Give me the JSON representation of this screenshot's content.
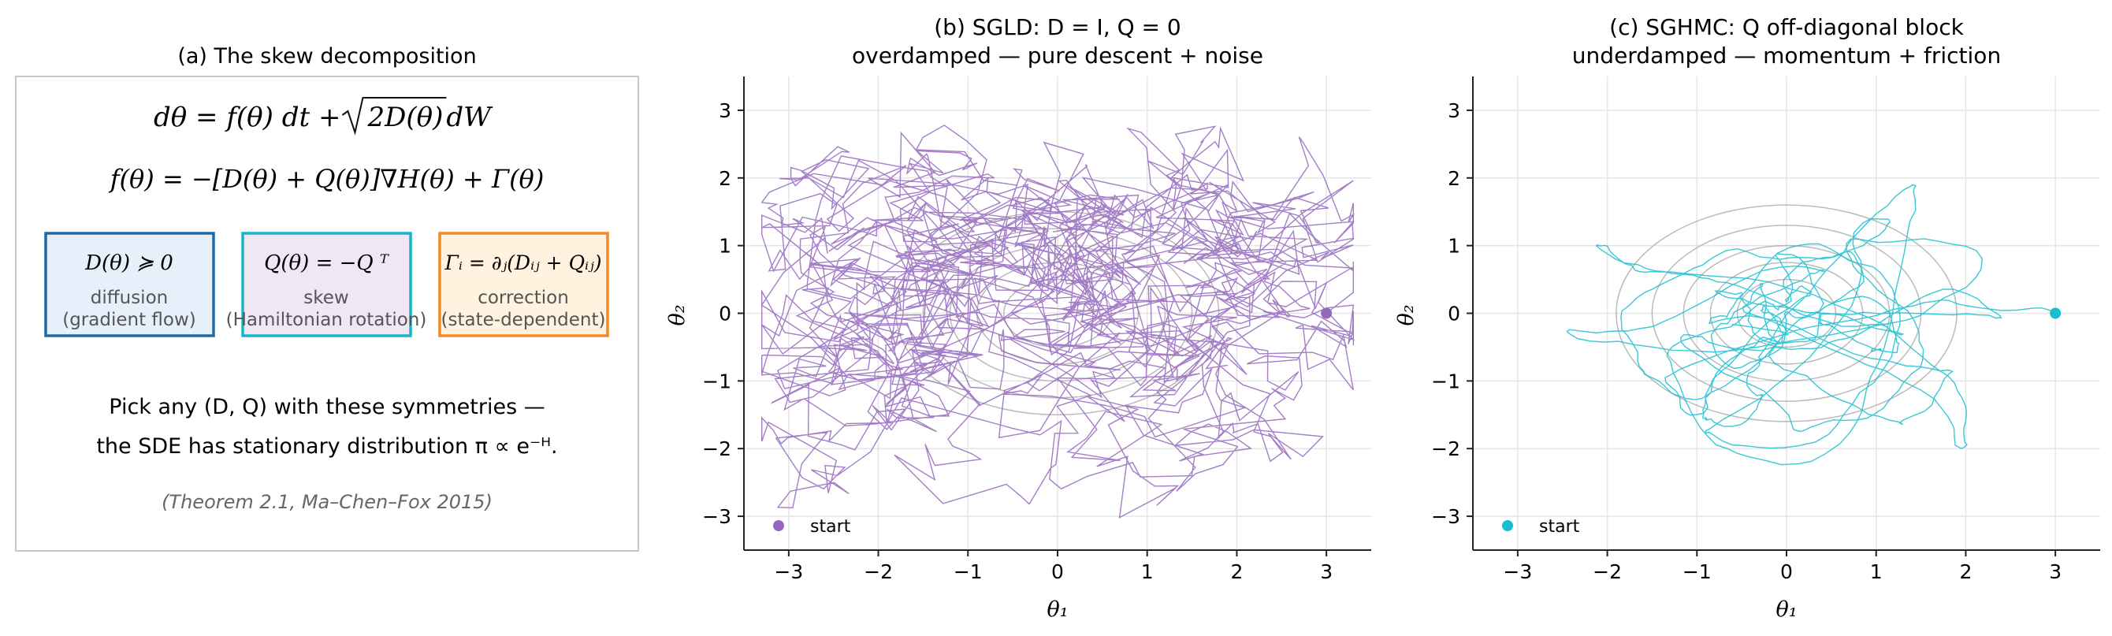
{
  "panel_a": {
    "title": "(a) The skew decomposition",
    "eq1": "dθ = f(θ) dt + √2D(θ) dW",
    "eq1_lhs": "dθ = f(θ) dt + ",
    "eq1_sqrt": "2D(θ)",
    "eq1_tail": " dW",
    "eq2": "f(θ) = −[D(θ) + Q(θ)]∇H(θ) + Γ(θ)",
    "boxes": [
      {
        "formula": "D(θ) ≽ 0",
        "label1": "diffusion",
        "label2": "(gradient flow)",
        "border": "#1f6aa5",
        "fill": "#e6f0fa"
      },
      {
        "formula": "Q(θ) = −Q ᵀ",
        "label1": "skew",
        "label2": "(Hamiltonian rotation)",
        "border": "#17b5c9",
        "fill": "#efe6f6"
      },
      {
        "formula": "Γᵢ = ∂ⱼ(Dᵢⱼ + Qᵢⱼ)",
        "label1": "correction",
        "label2": "(state-dependent)",
        "border": "#f08a24",
        "fill": "#fff3e0"
      }
    ],
    "note1": "Pick any (D, Q) with these symmetries —",
    "note2": "the SDE has stationary distribution π ∝ e⁻ᴴ.",
    "citation": "(Theorem 2.1, Ma–Chen–Fox 2015)"
  },
  "chart_data": [
    {
      "type": "line",
      "title": "(b) SGLD: D = I, Q = 0",
      "subtitle": "overdamped — pure descent + noise",
      "xlabel": "θ₁",
      "ylabel": "θ₂",
      "xlim": [
        -3.5,
        3.5
      ],
      "ylim": [
        -3.5,
        3.5
      ],
      "xticks": [
        -3,
        -2,
        -1,
        0,
        1,
        2,
        3
      ],
      "yticks": [
        -3,
        -2,
        -1,
        0,
        1,
        2,
        3
      ],
      "tick_labels": [
        "−3",
        "−2",
        "−1",
        "0",
        "1",
        "2",
        "3"
      ],
      "grid": true,
      "legend": {
        "placement": "lower-left",
        "entries": [
          "start"
        ]
      },
      "start": [
        3,
        0
      ],
      "color": "#9467bd",
      "contours": {
        "center": [
          0,
          0
        ],
        "rx": [
          0.6,
          0.9,
          1.2,
          1.5,
          1.8
        ],
        "ry": [
          0.5,
          0.75,
          1.0,
          1.25,
          1.5
        ],
        "color": "#aaaaaa"
      },
      "series": [
        {
          "name": "start",
          "kind": "random-walk",
          "steps": 1400,
          "seed": 7
        }
      ]
    },
    {
      "type": "line",
      "title": "(c) SGHMC: Q off-diagonal block",
      "subtitle": "underdamped — momentum + friction",
      "xlabel": "θ₁",
      "ylabel": "θ₂",
      "xlim": [
        -3.5,
        3.5
      ],
      "ylim": [
        -3.5,
        3.5
      ],
      "xticks": [
        -3,
        -2,
        -1,
        0,
        1,
        2,
        3
      ],
      "yticks": [
        -3,
        -2,
        -1,
        0,
        1,
        2,
        3
      ],
      "tick_labels": [
        "−3",
        "−2",
        "−1",
        "0",
        "1",
        "2",
        "3"
      ],
      "grid": true,
      "legend": {
        "placement": "lower-left",
        "entries": [
          "start"
        ]
      },
      "start": [
        3,
        0
      ],
      "color": "#17becf",
      "contours": {
        "center": [
          0,
          0
        ],
        "rx": [
          0.55,
          0.85,
          1.15,
          1.5,
          1.9
        ],
        "ry": [
          0.5,
          0.75,
          1.0,
          1.3,
          1.6
        ],
        "color": "#aaaaaa"
      },
      "series": [
        {
          "name": "start",
          "kind": "momentum",
          "steps": 900,
          "seed": 11
        }
      ]
    }
  ]
}
